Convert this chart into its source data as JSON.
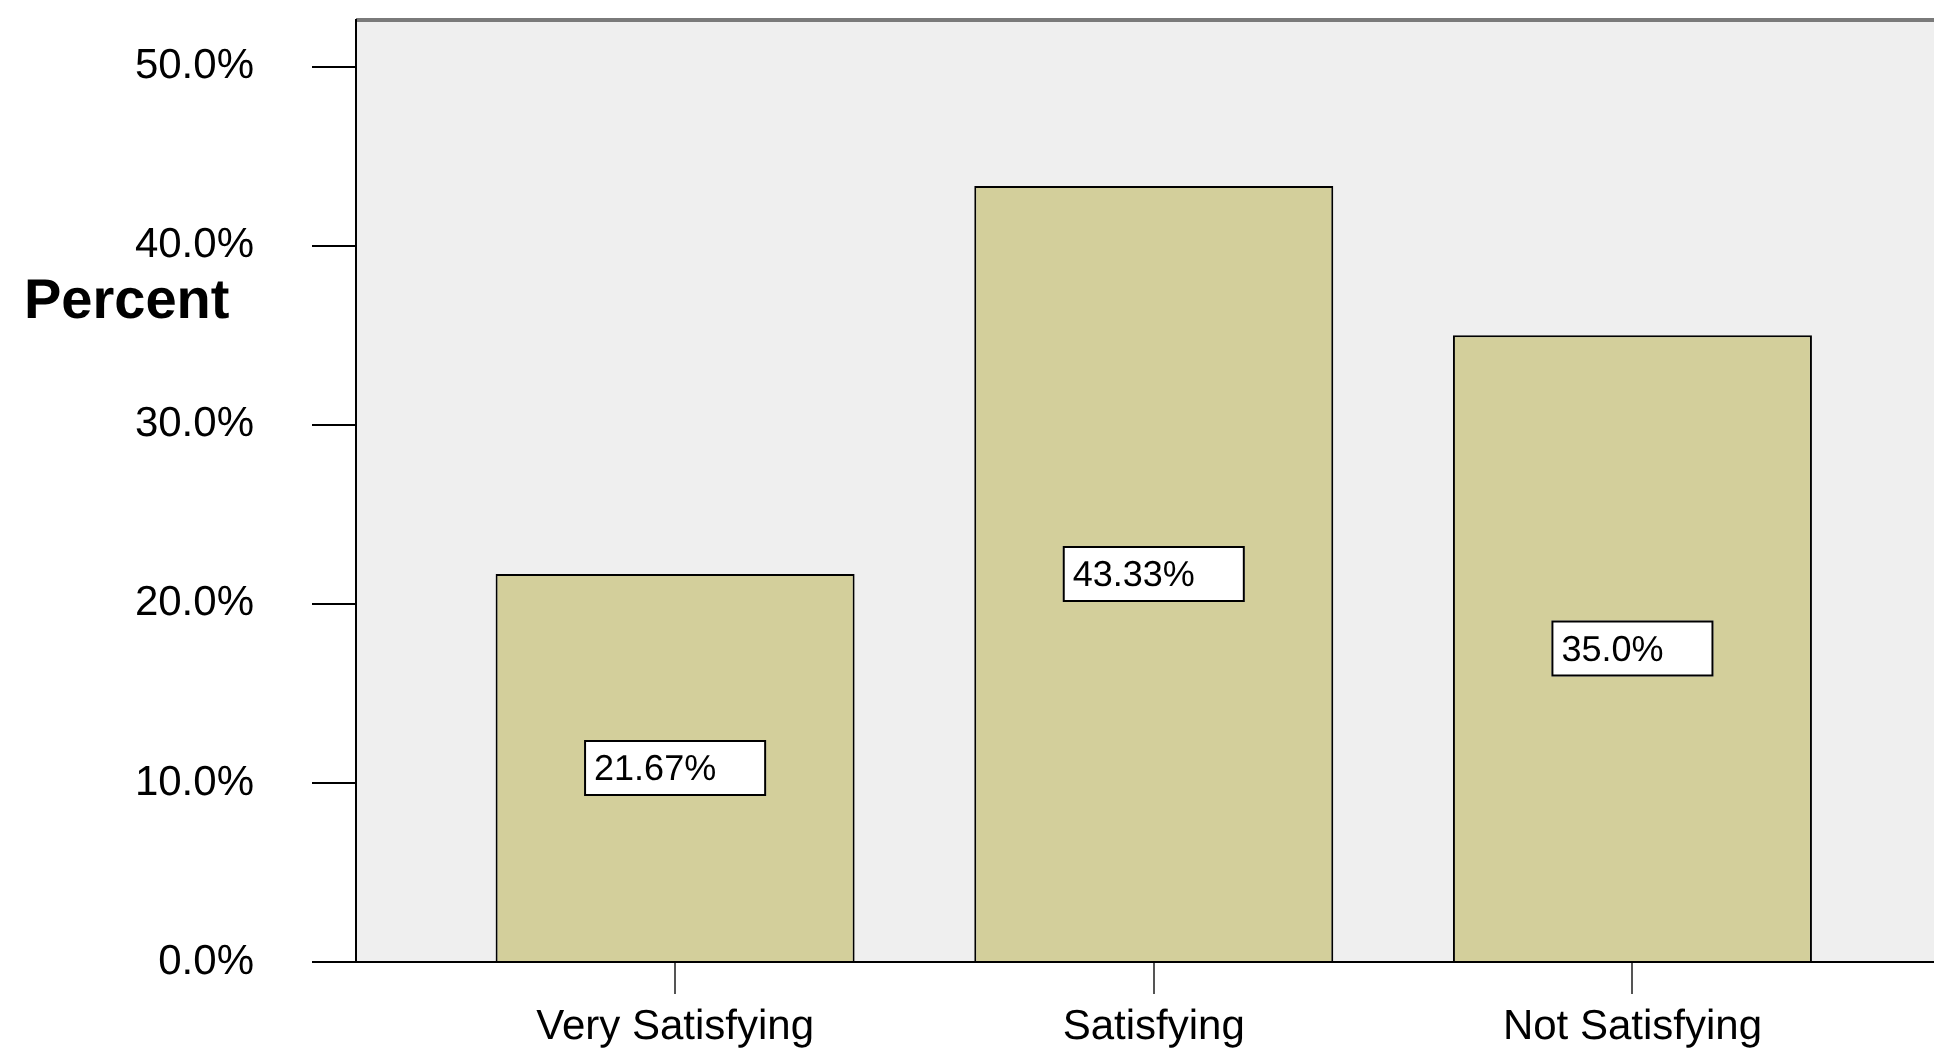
{
  "chart_data": {
    "type": "bar",
    "ylabel": "Percent",
    "categories": [
      "Very Satisfying",
      "Satisfying",
      "Not Satisfying"
    ],
    "values": [
      21.67,
      43.33,
      35.0
    ],
    "value_labels": [
      "21.67%",
      "43.33%",
      "35.0%"
    ],
    "color": "#d3cf9b",
    "ylim": [
      0,
      52.6
    ],
    "yticks": [
      {
        "value": 0,
        "label": "0.0%"
      },
      {
        "value": 10,
        "label": "10.0%"
      },
      {
        "value": 20,
        "label": "20.0%"
      },
      {
        "value": 30,
        "label": "30.0%"
      },
      {
        "value": 40,
        "label": "40.0%"
      },
      {
        "value": 50,
        "label": "50.0%"
      }
    ]
  }
}
